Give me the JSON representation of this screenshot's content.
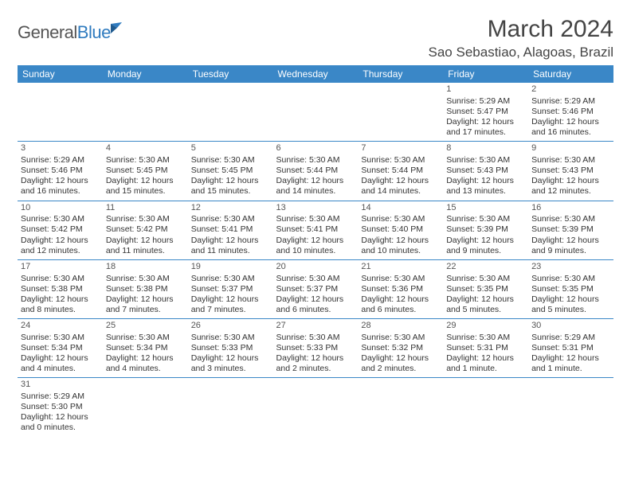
{
  "brand": {
    "general": "General",
    "blue": "Blue"
  },
  "title": "March 2024",
  "location": "Sao Sebastiao, Alagoas, Brazil",
  "colors": {
    "header_bg": "#3a87c7",
    "header_text": "#ffffff",
    "cell_border": "#3a87c7",
    "text": "#333333",
    "brand_gray": "#555555",
    "brand_blue": "#2f7bbf",
    "background": "#ffffff"
  },
  "day_headers": [
    "Sunday",
    "Monday",
    "Tuesday",
    "Wednesday",
    "Thursday",
    "Friday",
    "Saturday"
  ],
  "weeks": [
    [
      null,
      null,
      null,
      null,
      null,
      {
        "n": "1",
        "sr": "Sunrise: 5:29 AM",
        "ss": "Sunset: 5:47 PM",
        "d1": "Daylight: 12 hours",
        "d2": "and 17 minutes."
      },
      {
        "n": "2",
        "sr": "Sunrise: 5:29 AM",
        "ss": "Sunset: 5:46 PM",
        "d1": "Daylight: 12 hours",
        "d2": "and 16 minutes."
      }
    ],
    [
      {
        "n": "3",
        "sr": "Sunrise: 5:29 AM",
        "ss": "Sunset: 5:46 PM",
        "d1": "Daylight: 12 hours",
        "d2": "and 16 minutes."
      },
      {
        "n": "4",
        "sr": "Sunrise: 5:30 AM",
        "ss": "Sunset: 5:45 PM",
        "d1": "Daylight: 12 hours",
        "d2": "and 15 minutes."
      },
      {
        "n": "5",
        "sr": "Sunrise: 5:30 AM",
        "ss": "Sunset: 5:45 PM",
        "d1": "Daylight: 12 hours",
        "d2": "and 15 minutes."
      },
      {
        "n": "6",
        "sr": "Sunrise: 5:30 AM",
        "ss": "Sunset: 5:44 PM",
        "d1": "Daylight: 12 hours",
        "d2": "and 14 minutes."
      },
      {
        "n": "7",
        "sr": "Sunrise: 5:30 AM",
        "ss": "Sunset: 5:44 PM",
        "d1": "Daylight: 12 hours",
        "d2": "and 14 minutes."
      },
      {
        "n": "8",
        "sr": "Sunrise: 5:30 AM",
        "ss": "Sunset: 5:43 PM",
        "d1": "Daylight: 12 hours",
        "d2": "and 13 minutes."
      },
      {
        "n": "9",
        "sr": "Sunrise: 5:30 AM",
        "ss": "Sunset: 5:43 PM",
        "d1": "Daylight: 12 hours",
        "d2": "and 12 minutes."
      }
    ],
    [
      {
        "n": "10",
        "sr": "Sunrise: 5:30 AM",
        "ss": "Sunset: 5:42 PM",
        "d1": "Daylight: 12 hours",
        "d2": "and 12 minutes."
      },
      {
        "n": "11",
        "sr": "Sunrise: 5:30 AM",
        "ss": "Sunset: 5:42 PM",
        "d1": "Daylight: 12 hours",
        "d2": "and 11 minutes."
      },
      {
        "n": "12",
        "sr": "Sunrise: 5:30 AM",
        "ss": "Sunset: 5:41 PM",
        "d1": "Daylight: 12 hours",
        "d2": "and 11 minutes."
      },
      {
        "n": "13",
        "sr": "Sunrise: 5:30 AM",
        "ss": "Sunset: 5:41 PM",
        "d1": "Daylight: 12 hours",
        "d2": "and 10 minutes."
      },
      {
        "n": "14",
        "sr": "Sunrise: 5:30 AM",
        "ss": "Sunset: 5:40 PM",
        "d1": "Daylight: 12 hours",
        "d2": "and 10 minutes."
      },
      {
        "n": "15",
        "sr": "Sunrise: 5:30 AM",
        "ss": "Sunset: 5:39 PM",
        "d1": "Daylight: 12 hours",
        "d2": "and 9 minutes."
      },
      {
        "n": "16",
        "sr": "Sunrise: 5:30 AM",
        "ss": "Sunset: 5:39 PM",
        "d1": "Daylight: 12 hours",
        "d2": "and 9 minutes."
      }
    ],
    [
      {
        "n": "17",
        "sr": "Sunrise: 5:30 AM",
        "ss": "Sunset: 5:38 PM",
        "d1": "Daylight: 12 hours",
        "d2": "and 8 minutes."
      },
      {
        "n": "18",
        "sr": "Sunrise: 5:30 AM",
        "ss": "Sunset: 5:38 PM",
        "d1": "Daylight: 12 hours",
        "d2": "and 7 minutes."
      },
      {
        "n": "19",
        "sr": "Sunrise: 5:30 AM",
        "ss": "Sunset: 5:37 PM",
        "d1": "Daylight: 12 hours",
        "d2": "and 7 minutes."
      },
      {
        "n": "20",
        "sr": "Sunrise: 5:30 AM",
        "ss": "Sunset: 5:37 PM",
        "d1": "Daylight: 12 hours",
        "d2": "and 6 minutes."
      },
      {
        "n": "21",
        "sr": "Sunrise: 5:30 AM",
        "ss": "Sunset: 5:36 PM",
        "d1": "Daylight: 12 hours",
        "d2": "and 6 minutes."
      },
      {
        "n": "22",
        "sr": "Sunrise: 5:30 AM",
        "ss": "Sunset: 5:35 PM",
        "d1": "Daylight: 12 hours",
        "d2": "and 5 minutes."
      },
      {
        "n": "23",
        "sr": "Sunrise: 5:30 AM",
        "ss": "Sunset: 5:35 PM",
        "d1": "Daylight: 12 hours",
        "d2": "and 5 minutes."
      }
    ],
    [
      {
        "n": "24",
        "sr": "Sunrise: 5:30 AM",
        "ss": "Sunset: 5:34 PM",
        "d1": "Daylight: 12 hours",
        "d2": "and 4 minutes."
      },
      {
        "n": "25",
        "sr": "Sunrise: 5:30 AM",
        "ss": "Sunset: 5:34 PM",
        "d1": "Daylight: 12 hours",
        "d2": "and 4 minutes."
      },
      {
        "n": "26",
        "sr": "Sunrise: 5:30 AM",
        "ss": "Sunset: 5:33 PM",
        "d1": "Daylight: 12 hours",
        "d2": "and 3 minutes."
      },
      {
        "n": "27",
        "sr": "Sunrise: 5:30 AM",
        "ss": "Sunset: 5:33 PM",
        "d1": "Daylight: 12 hours",
        "d2": "and 2 minutes."
      },
      {
        "n": "28",
        "sr": "Sunrise: 5:30 AM",
        "ss": "Sunset: 5:32 PM",
        "d1": "Daylight: 12 hours",
        "d2": "and 2 minutes."
      },
      {
        "n": "29",
        "sr": "Sunrise: 5:30 AM",
        "ss": "Sunset: 5:31 PM",
        "d1": "Daylight: 12 hours",
        "d2": "and 1 minute."
      },
      {
        "n": "30",
        "sr": "Sunrise: 5:29 AM",
        "ss": "Sunset: 5:31 PM",
        "d1": "Daylight: 12 hours",
        "d2": "and 1 minute."
      }
    ],
    [
      {
        "n": "31",
        "sr": "Sunrise: 5:29 AM",
        "ss": "Sunset: 5:30 PM",
        "d1": "Daylight: 12 hours",
        "d2": "and 0 minutes."
      },
      null,
      null,
      null,
      null,
      null,
      null
    ]
  ]
}
